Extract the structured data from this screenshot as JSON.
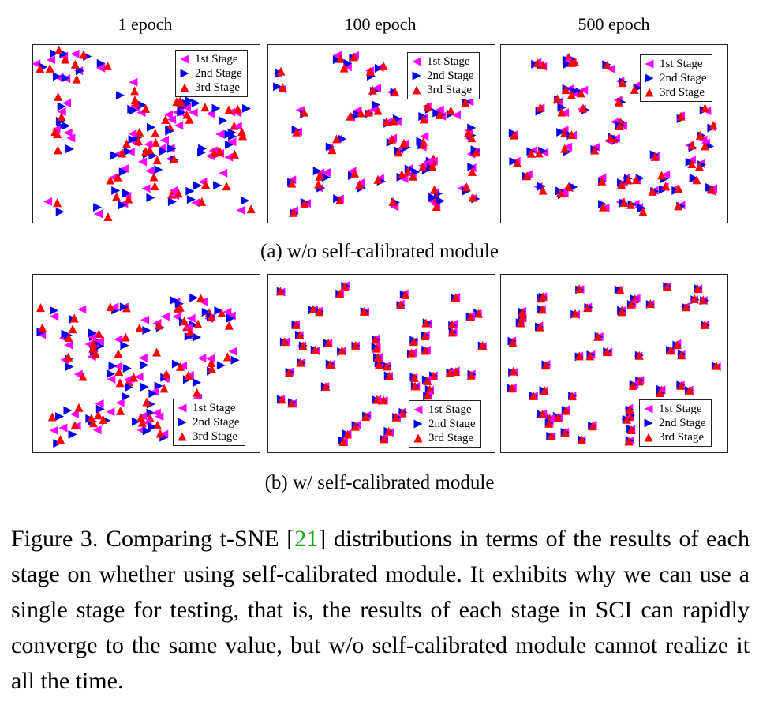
{
  "column_titles": [
    "1 epoch",
    "100 epoch",
    "500 epoch"
  ],
  "legend": {
    "items": [
      {
        "label": "1st Stage",
        "color": "#ff00ff",
        "marker": "left-triangle"
      },
      {
        "label": "2nd Stage",
        "color": "#0000ee",
        "marker": "right-triangle"
      },
      {
        "label": "3rd Stage",
        "color": "#ff0000",
        "marker": "up-triangle"
      }
    ]
  },
  "rows": [
    {
      "caption": "(a) w/o self-calibrated module"
    },
    {
      "caption": "(b) w/ self-calibrated module"
    }
  ],
  "figure_caption": {
    "prefix": "Figure 3.  Comparing t-SNE [",
    "ref": "21",
    "suffix": "] distributions in terms of the results of each stage on whether using self-calibrated module.  It exhibits why we can use a single stage for testing, that is, the results of each stage in SCI can rapidly converge to the same value, but w/o self-calibrated module cannot realize it all the time."
  },
  "chart_data": [
    {
      "type": "scatter",
      "title": "1 epoch",
      "row": "(a) w/o self-calibrated module",
      "series": [
        {
          "name": "1st Stage"
        },
        {
          "name": "2nd Stage"
        },
        {
          "name": "3rd Stage"
        }
      ],
      "spread": 0.9,
      "seed": 11
    },
    {
      "type": "scatter",
      "title": "100 epoch",
      "row": "(a) w/o self-calibrated module",
      "series": [
        {
          "name": "1st Stage"
        },
        {
          "name": "2nd Stage"
        },
        {
          "name": "3rd Stage"
        }
      ],
      "spread": 0.35,
      "seed": 23
    },
    {
      "type": "scatter",
      "title": "500 epoch",
      "row": "(a) w/o self-calibrated module",
      "series": [
        {
          "name": "1st Stage"
        },
        {
          "name": "2nd Stage"
        },
        {
          "name": "3rd Stage"
        }
      ],
      "spread": 0.3,
      "seed": 37
    },
    {
      "type": "scatter",
      "title": "1 epoch",
      "row": "(b) w/ self-calibrated module",
      "series": [
        {
          "name": "1st Stage"
        },
        {
          "name": "2nd Stage"
        },
        {
          "name": "3rd Stage"
        }
      ],
      "spread": 0.85,
      "seed": 41
    },
    {
      "type": "scatter",
      "title": "100 epoch",
      "row": "(b) w/ self-calibrated module",
      "series": [
        {
          "name": "1st Stage"
        },
        {
          "name": "2nd Stage"
        },
        {
          "name": "3rd Stage"
        }
      ],
      "spread": 0.08,
      "seed": 53
    },
    {
      "type": "scatter",
      "title": "500 epoch",
      "row": "(b) w/ self-calibrated module",
      "series": [
        {
          "name": "1st Stage"
        },
        {
          "name": "2nd Stage"
        },
        {
          "name": "3rd Stage"
        }
      ],
      "spread": 0.08,
      "seed": 67
    }
  ]
}
